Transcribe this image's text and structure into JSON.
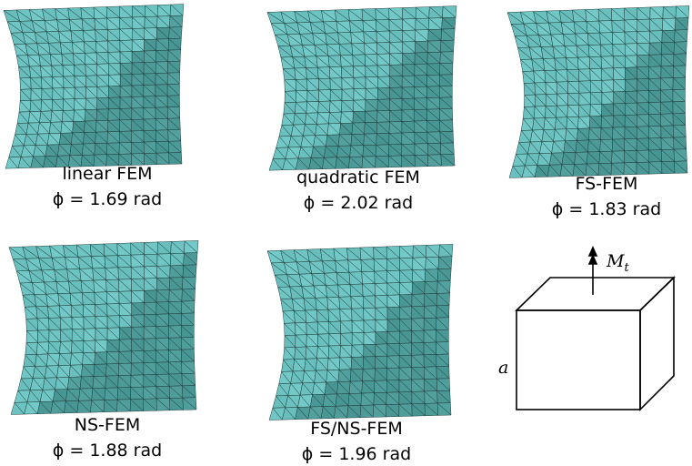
{
  "panels": [
    {
      "label": "linear FEM",
      "angle": "ϕ = 1.69 rad"
    },
    {
      "label": "quadratic FEM",
      "angle": "ϕ = 2.02 rad"
    },
    {
      "label": "FS-FEM",
      "angle": "ϕ = 1.83 rad"
    },
    {
      "label": "NS-FEM",
      "angle": "ϕ = 1.88 rad"
    },
    {
      "label": "FS/NS-FEM",
      "angle": "ϕ = 1.96 rad"
    }
  ],
  "diagram": {
    "moment_label": "M",
    "moment_subscript": "t",
    "side_label": "a"
  }
}
